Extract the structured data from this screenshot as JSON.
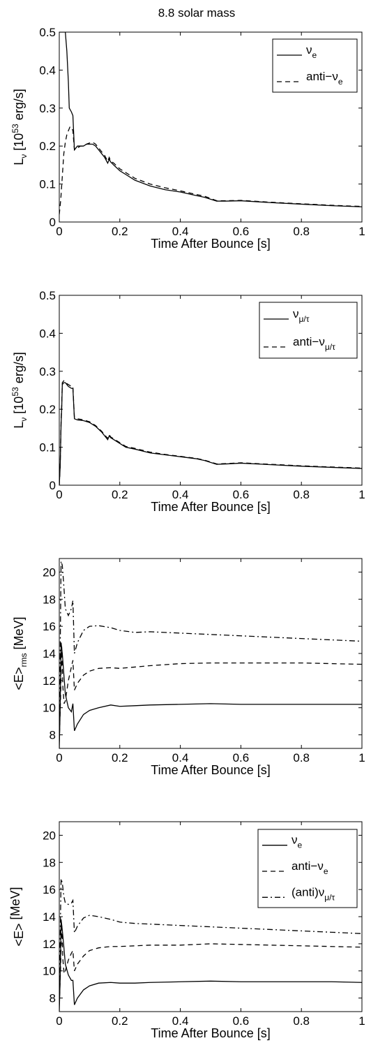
{
  "figure": {
    "title": "8.8 solar mass"
  },
  "chart_data": [
    {
      "type": "line",
      "ylabel": {
        "main": "L",
        "sub": "ν",
        "tail": " [10",
        "sup": "53",
        "end": " erg/s]"
      },
      "xlabel": "Time After Bounce [s]",
      "xlim": [
        0,
        1
      ],
      "ylim": [
        0,
        0.5
      ],
      "xticks": [
        "0",
        "0.2",
        "0.4",
        "0.6",
        "0.8",
        "1"
      ],
      "yticks": [
        "0",
        "0.1",
        "0.2",
        "0.3",
        "0.4",
        "0.5"
      ],
      "legend": [
        {
          "main": "ν",
          "sub": "e",
          "style": "solid"
        },
        {
          "main": "anti−ν",
          "sub": "e",
          "style": "dashed"
        }
      ],
      "series": [
        {
          "name": "νe",
          "style": "solid",
          "x": [
            0.0,
            0.005,
            0.01,
            0.015,
            0.02,
            0.025,
            0.03,
            0.033,
            0.04,
            0.045,
            0.05,
            0.055,
            0.06,
            0.07,
            0.08,
            0.09,
            0.1,
            0.11,
            0.12,
            0.13,
            0.14,
            0.15,
            0.16,
            0.165,
            0.17,
            0.18,
            0.2,
            0.22,
            0.25,
            0.3,
            0.35,
            0.4,
            0.45,
            0.48,
            0.52,
            0.55,
            0.6,
            0.7,
            0.8,
            0.9,
            1.0
          ],
          "y": [
            0.5,
            0.5,
            0.5,
            0.5,
            0.5,
            0.45,
            0.37,
            0.3,
            0.29,
            0.28,
            0.19,
            0.195,
            0.2,
            0.2,
            0.2,
            0.205,
            0.205,
            0.205,
            0.2,
            0.19,
            0.18,
            0.17,
            0.155,
            0.165,
            0.158,
            0.15,
            0.135,
            0.125,
            0.11,
            0.095,
            0.085,
            0.079,
            0.07,
            0.065,
            0.055,
            0.055,
            0.056,
            0.051,
            0.047,
            0.043,
            0.04
          ]
        },
        {
          "name": "anti−νe",
          "style": "dashed",
          "x": [
            0.0,
            0.005,
            0.01,
            0.015,
            0.02,
            0.025,
            0.03,
            0.035,
            0.04,
            0.045,
            0.05,
            0.06,
            0.07,
            0.08,
            0.09,
            0.1,
            0.11,
            0.12,
            0.13,
            0.14,
            0.15,
            0.16,
            0.165,
            0.17,
            0.18,
            0.2,
            0.22,
            0.25,
            0.3,
            0.35,
            0.4,
            0.45,
            0.48,
            0.52,
            0.55,
            0.6,
            0.7,
            0.8,
            0.9,
            1.0
          ],
          "y": [
            0.02,
            0.06,
            0.12,
            0.18,
            0.21,
            0.23,
            0.24,
            0.25,
            0.25,
            0.24,
            0.19,
            0.195,
            0.2,
            0.2,
            0.205,
            0.208,
            0.21,
            0.205,
            0.195,
            0.185,
            0.175,
            0.16,
            0.17,
            0.16,
            0.155,
            0.14,
            0.13,
            0.115,
            0.1,
            0.09,
            0.082,
            0.073,
            0.068,
            0.056,
            0.056,
            0.057,
            0.052,
            0.048,
            0.044,
            0.041
          ]
        }
      ]
    },
    {
      "type": "line",
      "ylabel": {
        "main": "L",
        "sub": "ν",
        "tail": " [10",
        "sup": "53",
        "end": " erg/s]"
      },
      "xlabel": "Time After Bounce [s]",
      "xlim": [
        0,
        1
      ],
      "ylim": [
        0,
        0.5
      ],
      "xticks": [
        "0",
        "0.2",
        "0.4",
        "0.6",
        "0.8",
        "1"
      ],
      "yticks": [
        "0",
        "0.1",
        "0.2",
        "0.3",
        "0.4",
        "0.5"
      ],
      "legend": [
        {
          "main": "ν",
          "sub": "μ/τ",
          "style": "solid"
        },
        {
          "main": "anti−ν",
          "sub": "μ/τ",
          "style": "dashed"
        }
      ],
      "series": [
        {
          "name": "νμ/τ",
          "style": "solid",
          "x": [
            0.0,
            0.003,
            0.006,
            0.008,
            0.01,
            0.015,
            0.02,
            0.03,
            0.04,
            0.045,
            0.05,
            0.06,
            0.08,
            0.1,
            0.12,
            0.14,
            0.16,
            0.165,
            0.17,
            0.18,
            0.2,
            0.22,
            0.25,
            0.3,
            0.35,
            0.4,
            0.45,
            0.48,
            0.52,
            0.55,
            0.6,
            0.7,
            0.8,
            0.9,
            1.0
          ],
          "y": [
            0.0,
            0.05,
            0.16,
            0.2,
            0.265,
            0.27,
            0.27,
            0.26,
            0.255,
            0.255,
            0.175,
            0.172,
            0.17,
            0.165,
            0.155,
            0.14,
            0.12,
            0.13,
            0.125,
            0.12,
            0.11,
            0.1,
            0.095,
            0.085,
            0.08,
            0.075,
            0.07,
            0.065,
            0.055,
            0.056,
            0.058,
            0.054,
            0.05,
            0.047,
            0.044
          ]
        },
        {
          "name": "anti−νμ/τ",
          "style": "dashed",
          "x": [
            0.0,
            0.003,
            0.006,
            0.008,
            0.01,
            0.015,
            0.02,
            0.03,
            0.04,
            0.045,
            0.05,
            0.06,
            0.08,
            0.1,
            0.12,
            0.14,
            0.16,
            0.165,
            0.17,
            0.18,
            0.2,
            0.22,
            0.25,
            0.3,
            0.35,
            0.4,
            0.45,
            0.48,
            0.52,
            0.55,
            0.6,
            0.7,
            0.8,
            0.9,
            1.0
          ],
          "y": [
            0.0,
            0.05,
            0.17,
            0.21,
            0.27,
            0.275,
            0.27,
            0.265,
            0.26,
            0.26,
            0.178,
            0.175,
            0.172,
            0.167,
            0.157,
            0.142,
            0.123,
            0.133,
            0.127,
            0.122,
            0.112,
            0.102,
            0.097,
            0.087,
            0.081,
            0.076,
            0.071,
            0.066,
            0.056,
            0.057,
            0.059,
            0.055,
            0.051,
            0.048,
            0.045
          ]
        }
      ]
    },
    {
      "type": "line",
      "ylabel": {
        "main": "<E>",
        "sub": "rms",
        "tail": " [MeV]",
        "sup": "",
        "end": ""
      },
      "xlabel": "Time After Bounce [s]",
      "xlim": [
        0,
        1
      ],
      "ylim": [
        7,
        21
      ],
      "xticks": [
        "0",
        "0.2",
        "0.4",
        "0.6",
        "0.8",
        "1"
      ],
      "yticks": [
        "8",
        "10",
        "12",
        "14",
        "16",
        "18",
        "20"
      ],
      "ytick_values": [
        8,
        10,
        12,
        14,
        16,
        18,
        20
      ],
      "legend": [],
      "series": [
        {
          "name": "νe",
          "style": "solid",
          "x": [
            0.0,
            0.003,
            0.006,
            0.01,
            0.015,
            0.02,
            0.03,
            0.04,
            0.045,
            0.05,
            0.06,
            0.08,
            0.1,
            0.13,
            0.17,
            0.2,
            0.25,
            0.3,
            0.4,
            0.5,
            0.6,
            0.7,
            0.8,
            0.9,
            1.0
          ],
          "y": [
            7.0,
            10.0,
            14.8,
            14.0,
            12.5,
            11.0,
            10.0,
            9.7,
            10.3,
            8.3,
            8.8,
            9.5,
            9.8,
            10.0,
            10.2,
            10.1,
            10.15,
            10.2,
            10.25,
            10.3,
            10.25,
            10.25,
            10.25,
            10.25,
            10.25
          ]
        },
        {
          "name": "anti−νe",
          "style": "dashed",
          "x": [
            0.0,
            0.004,
            0.008,
            0.012,
            0.016,
            0.02,
            0.03,
            0.04,
            0.045,
            0.05,
            0.06,
            0.08,
            0.1,
            0.13,
            0.17,
            0.2,
            0.25,
            0.3,
            0.4,
            0.5,
            0.6,
            0.7,
            0.8,
            0.9,
            1.0
          ],
          "y": [
            7.5,
            10.5,
            14.5,
            11.5,
            10.3,
            10.5,
            12.0,
            13.0,
            13.5,
            11.3,
            11.8,
            12.4,
            12.7,
            12.9,
            12.95,
            12.9,
            13.0,
            13.1,
            13.25,
            13.3,
            13.3,
            13.3,
            13.3,
            13.25,
            13.2
          ]
        },
        {
          "name": "(anti)νμ/τ",
          "style": "dashdot",
          "x": [
            0.0,
            0.003,
            0.006,
            0.01,
            0.015,
            0.02,
            0.03,
            0.04,
            0.045,
            0.05,
            0.06,
            0.08,
            0.1,
            0.13,
            0.17,
            0.2,
            0.25,
            0.3,
            0.4,
            0.5,
            0.6,
            0.7,
            0.8,
            0.9,
            1.0
          ],
          "y": [
            8.0,
            14.0,
            20.8,
            20.5,
            19.0,
            17.3,
            16.8,
            17.3,
            17.9,
            14.0,
            14.8,
            15.7,
            16.0,
            16.05,
            15.9,
            15.7,
            15.55,
            15.6,
            15.5,
            15.4,
            15.3,
            15.2,
            15.1,
            15.0,
            14.9
          ]
        }
      ]
    },
    {
      "type": "line",
      "ylabel": {
        "main": "<E>",
        "sub": "",
        "tail": " [MeV]",
        "sup": "",
        "end": ""
      },
      "xlabel": "Time After Bounce [s]",
      "xlim": [
        0,
        1
      ],
      "ylim": [
        7,
        21
      ],
      "xticks": [
        "0",
        "0.2",
        "0.4",
        "0.6",
        "0.8",
        "1"
      ],
      "yticks": [
        "8",
        "10",
        "12",
        "14",
        "16",
        "18",
        "20"
      ],
      "ytick_values": [
        8,
        10,
        12,
        14,
        16,
        18,
        20
      ],
      "legend": [
        {
          "main": "ν",
          "sub": "e",
          "style": "solid"
        },
        {
          "main": "anti−ν",
          "sub": "e",
          "style": "dashed"
        },
        {
          "main": "(anti)ν",
          "sub": "μ/τ",
          "style": "dashdot"
        }
      ],
      "series": [
        {
          "name": "νe",
          "style": "solid",
          "x": [
            0.0,
            0.003,
            0.006,
            0.01,
            0.015,
            0.02,
            0.03,
            0.04,
            0.045,
            0.05,
            0.06,
            0.08,
            0.1,
            0.13,
            0.17,
            0.2,
            0.25,
            0.3,
            0.4,
            0.5,
            0.6,
            0.7,
            0.8,
            0.9,
            1.0
          ],
          "y": [
            7.0,
            9.5,
            13.8,
            13.0,
            11.8,
            10.5,
            9.7,
            9.3,
            9.3,
            7.5,
            8.0,
            8.6,
            8.9,
            9.1,
            9.15,
            9.1,
            9.1,
            9.15,
            9.2,
            9.25,
            9.2,
            9.2,
            9.2,
            9.2,
            9.15
          ]
        },
        {
          "name": "anti−νe",
          "style": "dashed",
          "x": [
            0.0,
            0.004,
            0.008,
            0.012,
            0.016,
            0.02,
            0.03,
            0.04,
            0.045,
            0.05,
            0.06,
            0.08,
            0.1,
            0.13,
            0.17,
            0.2,
            0.25,
            0.3,
            0.4,
            0.5,
            0.6,
            0.7,
            0.8,
            0.9,
            1.0
          ],
          "y": [
            7.5,
            10.0,
            13.5,
            10.8,
            9.8,
            10.0,
            10.8,
            11.3,
            11.5,
            10.0,
            10.5,
            11.1,
            11.5,
            11.7,
            11.8,
            11.8,
            11.85,
            11.9,
            11.9,
            12.0,
            11.95,
            11.9,
            11.85,
            11.8,
            11.75
          ]
        },
        {
          "name": "(anti)νμ/τ",
          "style": "dashdot",
          "x": [
            0.0,
            0.003,
            0.006,
            0.01,
            0.015,
            0.02,
            0.03,
            0.04,
            0.045,
            0.05,
            0.06,
            0.08,
            0.1,
            0.13,
            0.17,
            0.2,
            0.25,
            0.3,
            0.4,
            0.5,
            0.6,
            0.7,
            0.8,
            0.9,
            1.0
          ],
          "y": [
            8.0,
            12.5,
            16.8,
            16.5,
            15.5,
            15.0,
            14.9,
            15.0,
            15.2,
            12.8,
            13.3,
            13.9,
            14.1,
            14.0,
            13.8,
            13.6,
            13.5,
            13.45,
            13.35,
            13.25,
            13.15,
            13.05,
            12.95,
            12.85,
            12.75
          ]
        }
      ]
    }
  ]
}
